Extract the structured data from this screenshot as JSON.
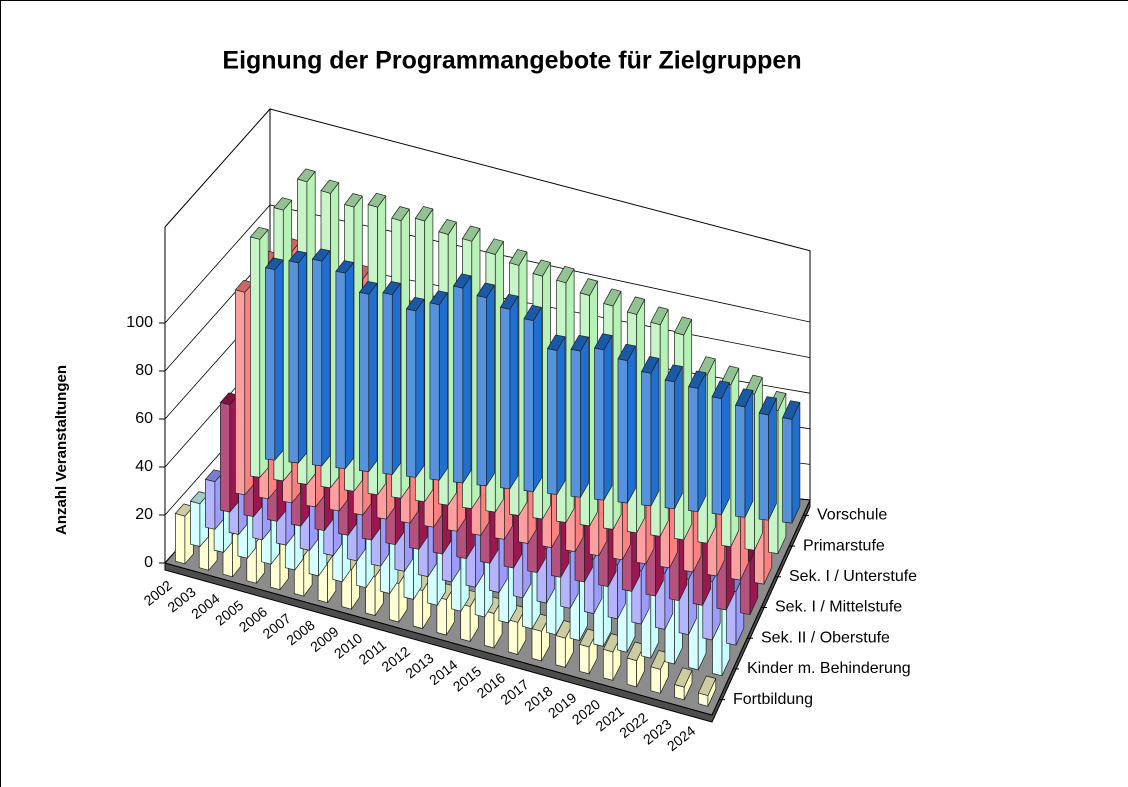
{
  "chart_data": {
    "type": "bar3d",
    "title": "Eignung der Programmangebote für Zielgruppen",
    "y_label": "Anzahl Veranstaltungen",
    "categories": [
      "2002",
      "2003",
      "2004",
      "2005",
      "2006",
      "2007",
      "2008",
      "2009",
      "2010",
      "2011",
      "2012",
      "2013",
      "2014",
      "2015",
      "2016",
      "2017",
      "2018",
      "2019",
      "2020",
      "2021",
      "2022",
      "2023",
      "2024"
    ],
    "ylim": [
      0,
      140
    ],
    "yticks": [
      0,
      20,
      40,
      60,
      80,
      100
    ],
    "grid": true,
    "series": [
      {
        "name": "Vorschule",
        "color": "#1f6fd1",
        "values": [
          80,
          85,
          88,
          85,
          78,
          80,
          75,
          80,
          90,
          88,
          85,
          82,
          70,
          72,
          75,
          72,
          68,
          66,
          65,
          62,
          60,
          58,
          58
        ]
      },
      {
        "name": "Primarstufe",
        "color": "#b6f2b6",
        "values": [
          100,
          115,
          130,
          128,
          125,
          128,
          125,
          128,
          125,
          125,
          122,
          120,
          118,
          118,
          115,
          113,
          112,
          110,
          108,
          90,
          88,
          86,
          80
        ]
      },
      {
        "name": "Sek. I / Unterstufe",
        "color": "#ff8080",
        "values": [
          85,
          100,
          108,
          95,
          100,
          105,
          92,
          95,
          100,
          100,
          95,
          90,
          88,
          88,
          85,
          82,
          80,
          80,
          78,
          75,
          72,
          68,
          58
        ]
      },
      {
        "name": "Sek. I / Mittelstufe",
        "color": "#9b1750",
        "values": [
          45,
          60,
          62,
          58,
          58,
          55,
          55,
          50,
          50,
          48,
          45,
          45,
          42,
          40,
          40,
          38,
          38,
          35,
          35,
          35,
          35,
          35,
          30
        ]
      },
      {
        "name": "Sek. II / Oberstufe",
        "color": "#9c9cff",
        "values": [
          20,
          28,
          30,
          32,
          30,
          28,
          28,
          30,
          30,
          30,
          28,
          28,
          28,
          28,
          27,
          28,
          28,
          28,
          28,
          30,
          30,
          32,
          30
        ]
      },
      {
        "name": "Kinder m. Behinderung",
        "color": "#c8ffff",
        "values": [
          18,
          20,
          22,
          25,
          25,
          28,
          30,
          35,
          45,
          55,
          55,
          52,
          50,
          50,
          55,
          55,
          55,
          50,
          45,
          45,
          45,
          48,
          50
        ]
      },
      {
        "name": "Fortbildung",
        "color": "#ffffc8",
        "values": [
          20,
          20,
          18,
          18,
          20,
          18,
          18,
          18,
          18,
          18,
          18,
          17,
          17,
          17,
          16,
          15,
          15,
          14,
          15,
          14,
          13,
          7,
          6
        ]
      }
    ]
  }
}
